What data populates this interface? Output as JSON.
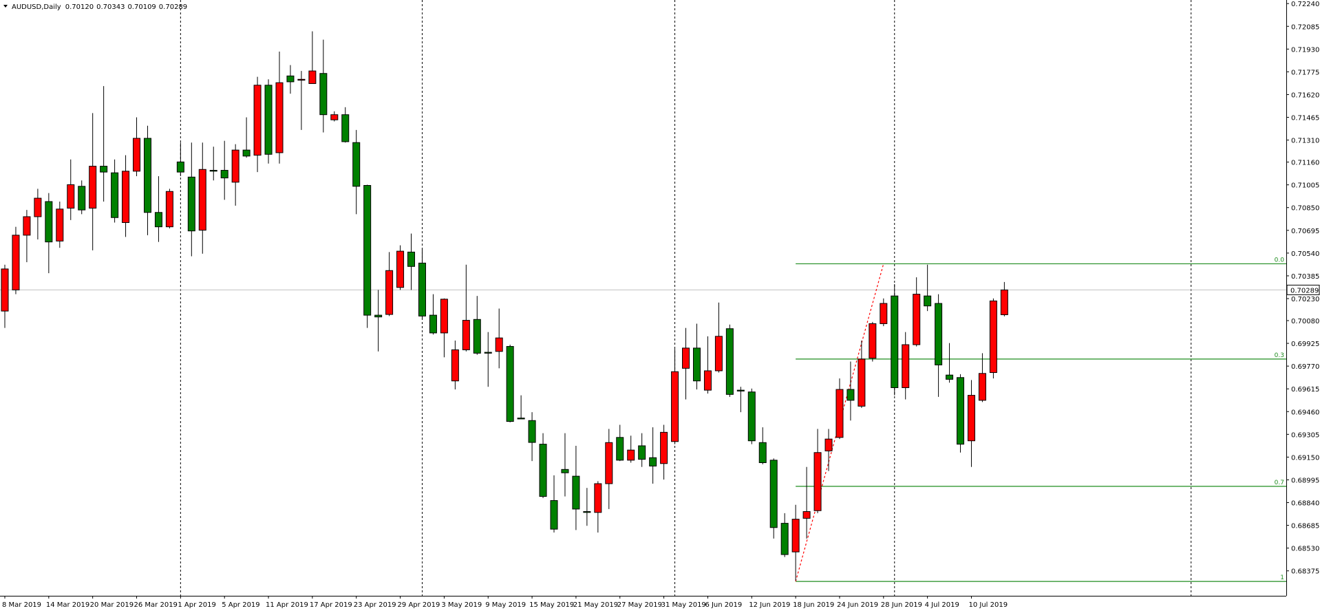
{
  "chart_data": {
    "type": "candlestick",
    "title": "AUDUSD,Daily",
    "title_prices": [
      "0.70120",
      "0.70343",
      "0.70109",
      "0.70289"
    ],
    "categories": [
      "8 Mar 2019",
      null,
      null,
      null,
      "14 Mar 2019",
      null,
      null,
      null,
      "20 Mar 2019",
      null,
      null,
      null,
      "26 Mar 2019",
      null,
      null,
      null,
      "1 Apr 2019",
      null,
      null,
      null,
      "5 Apr 2019",
      null,
      null,
      null,
      "11 Apr 2019",
      null,
      null,
      null,
      "17 Apr 2019",
      null,
      null,
      null,
      "23 Apr 2019",
      null,
      null,
      null,
      "29 Apr 2019",
      null,
      null,
      null,
      "3 May 2019",
      null,
      null,
      null,
      "9 May 2019",
      null,
      null,
      null,
      "15 May 2019",
      null,
      null,
      null,
      "21 May 2019",
      null,
      null,
      null,
      "27 May 2019",
      null,
      null,
      null,
      "31 May 2019",
      null,
      null,
      null,
      "6 Jun 2019",
      null,
      null,
      null,
      "12 Jun 2019",
      null,
      null,
      null,
      "18 Jun 2019",
      null,
      null,
      null,
      "24 Jun 2019",
      null,
      null,
      null,
      "28 Jun 2019",
      null,
      null,
      null,
      "4 Jul 2019",
      null,
      null,
      null,
      "10 Jul 2019",
      null,
      null,
      null
    ],
    "open": [
      0.70145,
      0.70289,
      0.70662,
      0.70788,
      0.70891,
      0.70622,
      0.70846,
      0.70995,
      0.70846,
      0.71132,
      0.71087,
      0.70748,
      0.71098,
      0.71322,
      0.70817,
      0.70719,
      0.71161,
      0.71058,
      0.70696,
      0.71104,
      0.71104,
      0.71023,
      0.71242,
      0.71207,
      0.71684,
      0.71224,
      0.71747,
      0.71718,
      0.71695,
      0.71764,
      0.71448,
      0.71483,
      0.71293,
      0.71001,
      0.70117,
      0.70122,
      0.70306,
      0.70547,
      0.70472,
      0.70117,
      0.69996,
      0.69669,
      0.69881,
      0.70088,
      0.69864,
      0.6987,
      0.69904,
      0.69416,
      0.69399,
      0.69238,
      0.68854,
      0.69066,
      0.6902,
      0.68779,
      0.68773,
      0.68969,
      0.69284,
      0.69129,
      0.69227,
      0.69146,
      0.69106,
      0.69256,
      0.69755,
      0.69893,
      0.69606,
      0.69738,
      0.70025,
      0.69606,
      0.69594,
      0.69249,
      0.69129,
      0.68699,
      0.68504,
      0.68733,
      0.68785,
      0.69192,
      0.69284,
      0.69611,
      0.69497,
      0.69824,
      0.70059,
      0.70248,
      0.69623,
      0.69916,
      0.70248,
      0.70197,
      0.69709,
      0.69692,
      0.69261,
      0.69537,
      0.69726,
      0.7012
    ],
    "high": [
      0.70461,
      0.70719,
      0.70834,
      0.70978,
      0.70949,
      0.70891,
      0.71178,
      0.71035,
      0.71494,
      0.71678,
      0.71178,
      0.71207,
      0.71465,
      0.71408,
      0.71064,
      0.70978,
      0.71293,
      0.71293,
      0.71293,
      0.71265,
      0.71305,
      0.71282,
      0.71465,
      0.71741,
      0.71724,
      0.71913,
      0.71821,
      0.71781,
      0.72051,
      0.71994,
      0.71506,
      0.71534,
      0.71379,
      0.71006,
      0.70289,
      0.70547,
      0.70593,
      0.70673,
      0.70576,
      0.7026,
      0.70231,
      0.69944,
      0.70461,
      0.70248,
      0.70002,
      0.70162,
      0.69916,
      0.69571,
      0.69456,
      0.69313,
      0.69026,
      0.69313,
      0.69227,
      0.6894,
      0.68986,
      0.69342,
      0.6937,
      0.69296,
      0.69313,
      0.69353,
      0.6937,
      0.69887,
      0.7003,
      0.70059,
      0.69973,
      0.70203,
      0.70053,
      0.69629,
      0.69617,
      0.69353,
      0.69141,
      0.68768,
      0.68825,
      0.69083,
      0.69342,
      0.69342,
      0.69686,
      0.69801,
      0.69944,
      0.70071,
      0.70231,
      0.70329,
      0.70002,
      0.70375,
      0.70461,
      0.7026,
      0.69927,
      0.69715,
      0.69675,
      0.69858,
      0.70231,
      0.70343
    ],
    "low": [
      0.7003,
      0.7026,
      0.70478,
      0.70633,
      0.70403,
      0.70576,
      0.70765,
      0.70805,
      0.70559,
      0.70891,
      0.70748,
      0.7065,
      0.71064,
      0.70662,
      0.70616,
      0.70708,
      0.71064,
      0.70518,
      0.70536,
      0.71035,
      0.70903,
      0.70863,
      0.7119,
      0.71092,
      0.7115,
      0.7115,
      0.71626,
      0.71379,
      0.71695,
      0.71362,
      0.71437,
      0.71293,
      0.70805,
      0.7003,
      0.6987,
      0.70111,
      0.70289,
      0.70289,
      0.70088,
      0.69985,
      0.6983,
      0.69611,
      0.6987,
      0.69847,
      0.69629,
      0.69755,
      0.69387,
      0.6941,
      0.69123,
      0.68871,
      0.68636,
      0.68882,
      0.68653,
      0.68682,
      0.68636,
      0.68796,
      0.69123,
      0.69112,
      0.69083,
      0.68969,
      0.68997,
      0.69238,
      0.69543,
      0.69611,
      0.69583,
      0.69726,
      0.6956,
      0.69456,
      0.69238,
      0.69101,
      0.68595,
      0.68469,
      0.68308,
      0.68595,
      0.68768,
      0.69055,
      0.69273,
      0.69399,
      0.69485,
      0.69801,
      0.70042,
      0.69571,
      0.69543,
      0.69904,
      0.70145,
      0.6956,
      0.69657,
      0.69181,
      0.69083,
      0.69525,
      0.69686,
      0.70109
    ],
    "close": [
      0.70432,
      0.70662,
      0.70788,
      0.70914,
      0.70616,
      0.7084,
      0.71006,
      0.70834,
      0.71132,
      0.71092,
      0.70782,
      0.71098,
      0.71322,
      0.70817,
      0.70719,
      0.7096,
      0.71092,
      0.70691,
      0.7111,
      0.71098,
      0.71052,
      0.71242,
      0.71201,
      0.71684,
      0.71213,
      0.71701,
      0.71707,
      0.71724,
      0.71781,
      0.71483,
      0.71483,
      0.71299,
      0.70995,
      0.70117,
      0.70105,
      0.70421,
      0.70553,
      0.70449,
      0.70111,
      0.69996,
      0.70226,
      0.69881,
      0.70082,
      0.69858,
      0.69858,
      0.69962,
      0.69393,
      0.6941,
      0.6925,
      0.68882,
      0.68659,
      0.69043,
      0.68796,
      0.68773,
      0.68969,
      0.69249,
      0.69129,
      0.69198,
      0.69135,
      0.69089,
      0.69319,
      0.69732,
      0.69893,
      0.69669,
      0.69738,
      0.69973,
      0.69577,
      0.696,
      0.69261,
      0.69112,
      0.6867,
      0.68486,
      0.68727,
      0.68779,
      0.69181,
      0.69273,
      0.69611,
      0.69537,
      0.69818,
      0.70059,
      0.70197,
      0.69623,
      0.69916,
      0.7026,
      0.7018,
      0.69778,
      0.6968,
      0.69238,
      0.69571,
      0.6972,
      0.70214,
      0.70289
    ],
    "up_color": "#ff0000",
    "down_color": "#008000",
    "ylim": [
      0.68205,
      0.72255
    ],
    "yticks": [
      {
        "value": 0.7224,
        "label": "0.72240"
      },
      0.72085,
      {
        "value": 0.7193,
        "label": "0.71930"
      },
      0.71775,
      {
        "value": 0.7162,
        "label": "0.71620"
      },
      0.71465,
      {
        "value": 0.7131,
        "label": "0.71310"
      },
      {
        "value": 0.7116,
        "label": "0.71160"
      },
      0.71005,
      {
        "value": 0.7085,
        "label": "0.70850"
      },
      0.70695,
      {
        "value": 0.7054,
        "label": "0.70540"
      },
      0.70385,
      {
        "value": 0.7023,
        "label": "0.70230"
      },
      {
        "value": 0.7008,
        "label": "0.70080"
      },
      0.69925,
      {
        "value": 0.6977,
        "label": "0.69770"
      },
      0.69615,
      {
        "value": 0.6946,
        "label": "0.69460"
      },
      0.69305,
      {
        "value": 0.6915,
        "label": "0.69150"
      },
      0.68995,
      {
        "value": 0.6884,
        "label": "0.68840"
      },
      0.68685,
      {
        "value": 0.6853,
        "label": "0.68530"
      },
      0.68375
    ],
    "price_label": {
      "value": 0.70289,
      "label": "0.70289"
    },
    "grid": false,
    "fibonacci": {
      "x": [
        "18 Jun 2019",
        "28 Jun 2019"
      ],
      "color": "#1e8c1e",
      "line_color": "#ff0000",
      "levels": [
        {
          "value": 0.70467,
          "label": "0.0"
        },
        {
          "value": 0.69818,
          "label": "0.3"
        },
        {
          "value": 0.68951,
          "label": "0.7"
        },
        {
          "value": 0.68303,
          "label": "1"
        }
      ]
    }
  }
}
